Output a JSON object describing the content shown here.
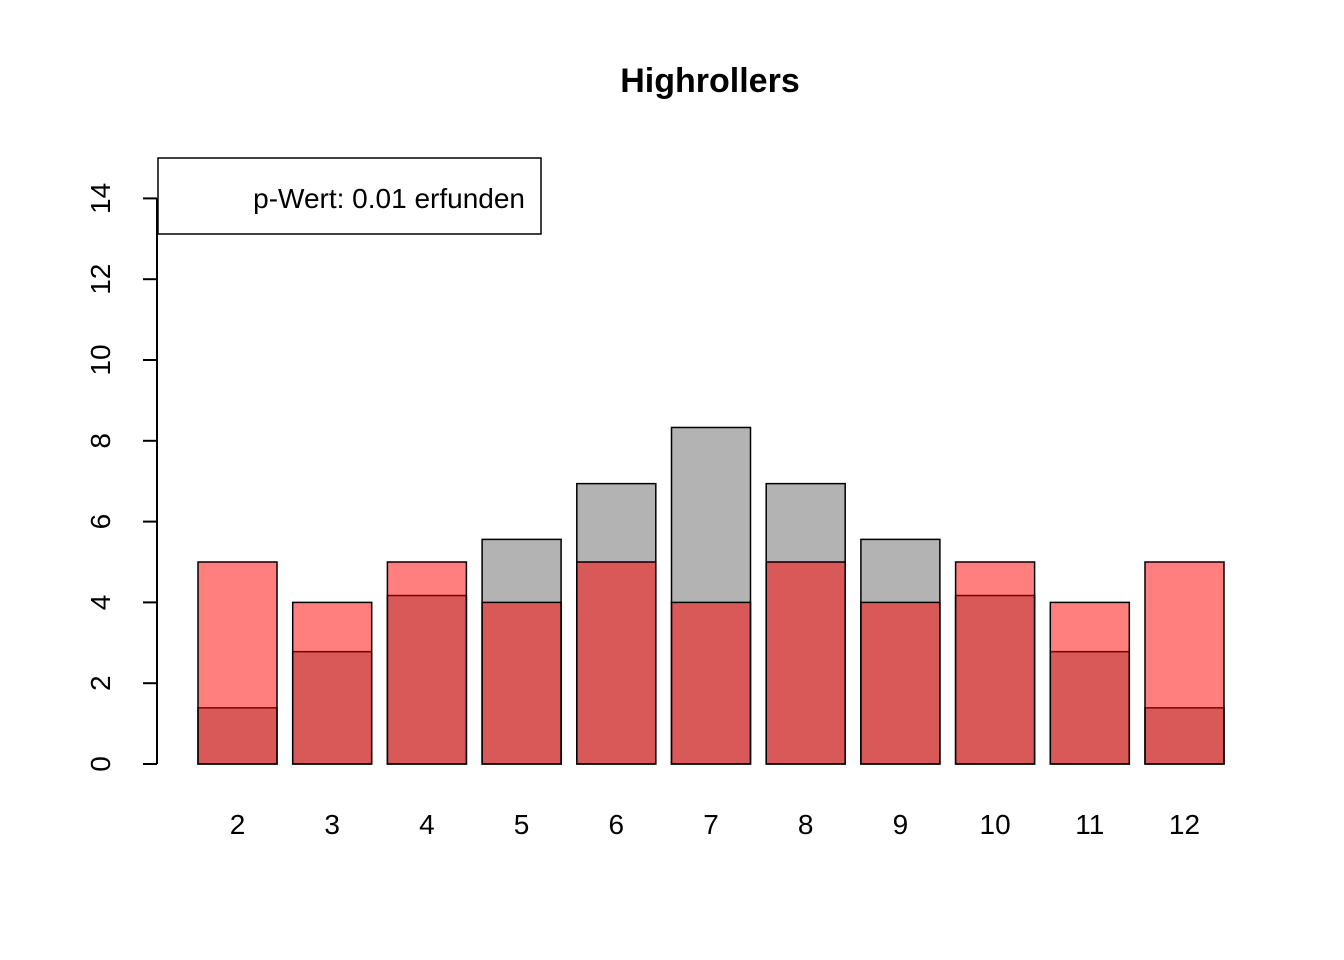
{
  "chart_data": {
    "type": "bar",
    "title": "Highrollers",
    "xlabel": "",
    "ylabel": "",
    "ylim": [
      0,
      15
    ],
    "yticks": [
      0,
      2,
      4,
      6,
      8,
      10,
      12,
      14
    ],
    "categories": [
      "2",
      "3",
      "4",
      "5",
      "6",
      "7",
      "8",
      "9",
      "10",
      "11",
      "12"
    ],
    "series": [
      {
        "color": "#b3b3b3",
        "values": [
          1.39,
          2.78,
          4.17,
          5.56,
          6.94,
          8.33,
          6.94,
          5.56,
          4.17,
          2.78,
          1.39
        ]
      },
      {
        "color": "#ff000080",
        "values": [
          5,
          4,
          5,
          4,
          5,
          4,
          5,
          4,
          5,
          4,
          5
        ]
      }
    ],
    "legend": {
      "text": "p-Wert: 0.01 erfunden",
      "position": "top-left"
    },
    "grid": false
  }
}
